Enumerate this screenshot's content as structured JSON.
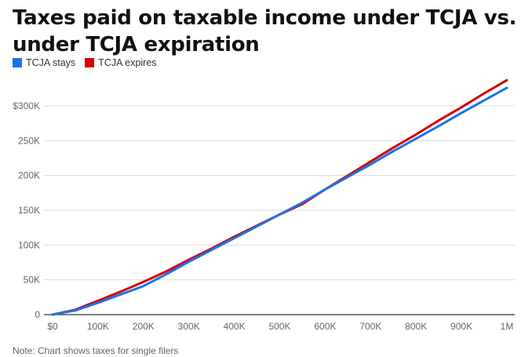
{
  "chart_data": {
    "type": "line",
    "title": "Taxes paid on taxable income under TCJA vs. under TCJA expiration",
    "xlabel": "",
    "ylabel": "",
    "xlim": [
      0,
      1000000
    ],
    "ylim": [
      0,
      300000
    ],
    "grid": true,
    "legend_position": "top-left",
    "x_ticks": [
      {
        "value": 0,
        "label": "$0"
      },
      {
        "value": 100000,
        "label": "100K"
      },
      {
        "value": 200000,
        "label": "200K"
      },
      {
        "value": 300000,
        "label": "300K"
      },
      {
        "value": 400000,
        "label": "400K"
      },
      {
        "value": 500000,
        "label": "500K"
      },
      {
        "value": 600000,
        "label": "600K"
      },
      {
        "value": 700000,
        "label": "700K"
      },
      {
        "value": 800000,
        "label": "800K"
      },
      {
        "value": 900000,
        "label": "900K"
      },
      {
        "value": 1000000,
        "label": "1M"
      }
    ],
    "y_ticks": [
      {
        "value": 0,
        "label": "0"
      },
      {
        "value": 50000,
        "label": "50K"
      },
      {
        "value": 100000,
        "label": "100K"
      },
      {
        "value": 150000,
        "label": "150K"
      },
      {
        "value": 200000,
        "label": "200K"
      },
      {
        "value": 250000,
        "label": "250K"
      },
      {
        "value": 300000,
        "label": "$300K"
      }
    ],
    "x": [
      0,
      50000,
      100000,
      150000,
      200000,
      250000,
      300000,
      350000,
      400000,
      450000,
      500000,
      550000,
      600000,
      650000,
      700000,
      750000,
      800000,
      850000,
      900000,
      950000,
      1000000
    ],
    "series": [
      {
        "name": "TCJA stays",
        "color": "#1a73e8",
        "values": [
          0,
          6000,
          17000,
          29000,
          41000,
          58000,
          76000,
          93000,
          110000,
          127000,
          144000,
          161000,
          180000,
          198000,
          216000,
          235000,
          253000,
          271000,
          290000,
          308000,
          326000
        ]
      },
      {
        "name": "TCJA expires",
        "color": "#d50000",
        "values": [
          0,
          7000,
          20000,
          33000,
          47000,
          62000,
          79000,
          95000,
          112000,
          128000,
          144000,
          159000,
          180000,
          200000,
          220000,
          240000,
          259000,
          279000,
          298000,
          318000,
          337000
        ]
      }
    ]
  },
  "note": "Note: Chart shows taxes for single filers"
}
